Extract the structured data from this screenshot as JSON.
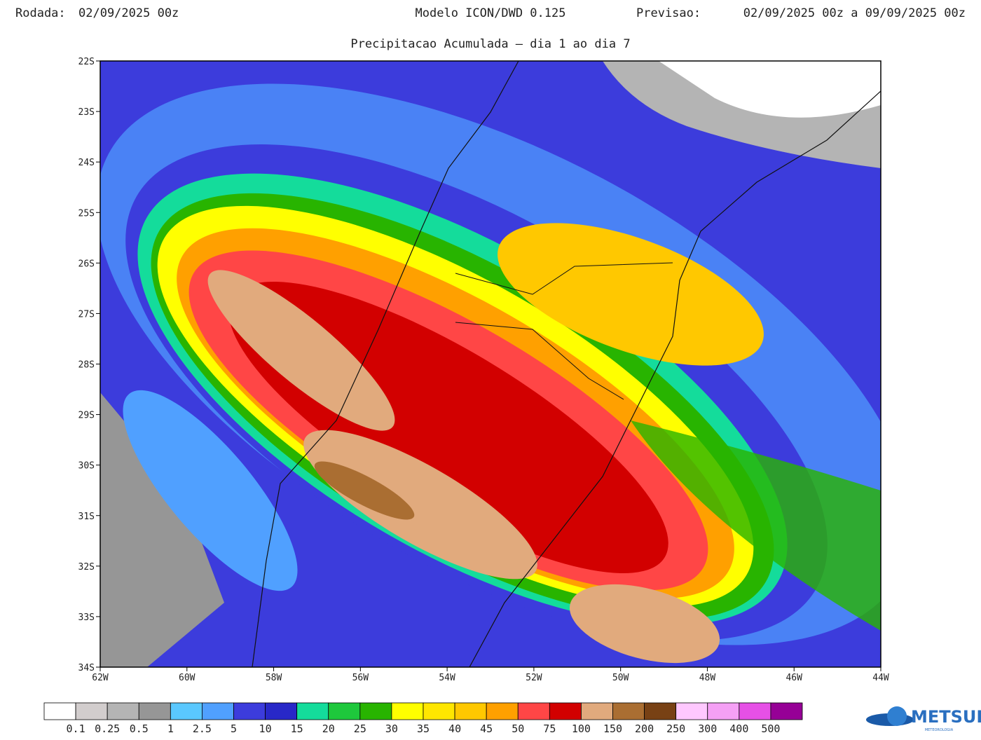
{
  "header": {
    "run_label": "Rodada:",
    "run_value": "02/09/2025 00z",
    "model": "Modelo ICON/DWD 0.125",
    "forecast_label": "Previsao:",
    "forecast_value": "02/09/2025 00z a 09/09/2025 00z",
    "subtitle": "Precipitacao Acumulada — dia 1 ao dia 7"
  },
  "map": {
    "lat_labels": [
      "22S",
      "23S",
      "24S",
      "25S",
      "26S",
      "27S",
      "28S",
      "29S",
      "30S",
      "31S",
      "32S",
      "33S",
      "34S"
    ],
    "lon_labels": [
      "62W",
      "60W",
      "58W",
      "56W",
      "54W",
      "52W",
      "50W",
      "48W",
      "46W",
      "44W"
    ]
  },
  "colorbar": {
    "labels": [
      "0.1",
      "0.25",
      "0.5",
      "1",
      "2.5",
      "5",
      "10",
      "15",
      "20",
      "25",
      "30",
      "35",
      "40",
      "45",
      "50",
      "75",
      "100",
      "150",
      "200",
      "250",
      "300",
      "400",
      "500"
    ],
    "colors": [
      "#ffffff",
      "#d2cdcd",
      "#b4b4b4",
      "#969696",
      "#5ac8ff",
      "#50a0ff",
      "#3c3cdc",
      "#2828c8",
      "#14dc9b",
      "#1ec83c",
      "#28b400",
      "#ffff00",
      "#ffe600",
      "#ffc800",
      "#ffa000",
      "#ff4646",
      "#d20000",
      "#e1aa7d",
      "#aa6e32",
      "#784114",
      "#ffc8ff",
      "#f5a0f5",
      "#e650e6",
      "#960096"
    ]
  },
  "logo": {
    "name": "METSUL",
    "tagline": "METEOROLOGIA"
  }
}
